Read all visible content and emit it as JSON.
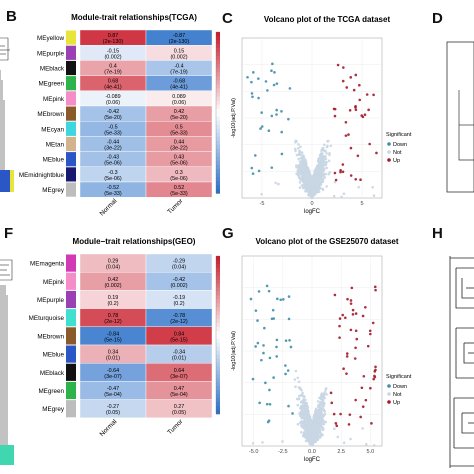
{
  "panel_letters": {
    "B": "B",
    "C": "C",
    "D": "D",
    "F": "F",
    "G": "G",
    "H": "H"
  },
  "chart_data": [
    {
      "type": "heatmap",
      "panel": "B",
      "title": "Module-trait relationships(TCGA)",
      "columns": [
        "Normal",
        "Tumor"
      ],
      "rows": [
        {
          "module": "MEyellow",
          "color": "#e8e43a",
          "values": [
            {
              "r": "0.87",
              "p": "(2e-130)",
              "num": 0.87
            },
            {
              "r": "-0.87",
              "p": "(2e-130)",
              "num": -0.87
            }
          ]
        },
        {
          "module": "MEpurple",
          "color": "#9b3fb5",
          "values": [
            {
              "r": "-0.15",
              "p": "(0.002)",
              "num": -0.15
            },
            {
              "r": "0.15",
              "p": "(0.002)",
              "num": 0.15
            }
          ]
        },
        {
          "module": "MEblack",
          "color": "#111111",
          "values": [
            {
              "r": "0.4",
              "p": "(7e-19)",
              "num": 0.4
            },
            {
              "r": "-0.4",
              "p": "(7e-19)",
              "num": -0.4
            }
          ]
        },
        {
          "module": "MEgreen",
          "color": "#2db34a",
          "values": [
            {
              "r": "0.68",
              "p": "(4e-41)",
              "num": 0.68
            },
            {
              "r": "-0.68",
              "p": "(4e-41)",
              "num": -0.68
            }
          ]
        },
        {
          "module": "MEpink",
          "color": "#f58ec8",
          "values": [
            {
              "r": "-0.089",
              "p": "(0.06)",
              "num": -0.089
            },
            {
              "r": "0.089",
              "p": "(0.06)",
              "num": 0.089
            }
          ]
        },
        {
          "module": "MEbrown",
          "color": "#8b5a2b",
          "values": [
            {
              "r": "-0.42",
              "p": "(5e-20)",
              "num": -0.42
            },
            {
              "r": "0.42",
              "p": "(5e-20)",
              "num": 0.42
            }
          ]
        },
        {
          "module": "MEcyan",
          "color": "#3fd6e0",
          "values": [
            {
              "r": "-0.5",
              "p": "(5e-33)",
              "num": -0.5
            },
            {
              "r": "0.5",
              "p": "(5e-33)",
              "num": 0.5
            }
          ]
        },
        {
          "module": "MEtan",
          "color": "#d2b48c",
          "values": [
            {
              "r": "-0.44",
              "p": "(3e-22)",
              "num": -0.44
            },
            {
              "r": "0.44",
              "p": "(3e-22)",
              "num": 0.44
            }
          ]
        },
        {
          "module": "MEblue",
          "color": "#2a56c6",
          "values": [
            {
              "r": "-0.43",
              "p": "(5e-06)",
              "num": -0.43
            },
            {
              "r": "0.43",
              "p": "(5e-06)",
              "num": 0.43
            }
          ]
        },
        {
          "module": "MEmidnightblue",
          "color": "#191970",
          "values": [
            {
              "r": "-0.3",
              "p": "(5e-06)",
              "num": -0.3
            },
            {
              "r": "0.3",
              "p": "(5e-06)",
              "num": 0.3
            }
          ]
        },
        {
          "module": "MEgrey",
          "color": "#bdbdbd",
          "values": [
            {
              "r": "-0.52",
              "p": "(5e-33)",
              "num": -0.52
            },
            {
              "r": "0.52",
              "p": "(5e-33)",
              "num": 0.52
            }
          ]
        }
      ],
      "colorbar": {
        "ticks": [
          "1",
          "0.5",
          "0",
          "-0.5",
          "-1"
        ],
        "range": [
          -1,
          1
        ]
      }
    },
    {
      "type": "scatter",
      "panel": "C",
      "title": "Volcano plot of the TCGA dataset",
      "xlabel": "logFC",
      "ylabel": "-log10(adj.P.Val)",
      "x_ticks": [
        "-5",
        "0",
        "5"
      ],
      "xlim": [
        -7,
        7
      ],
      "ylim": [
        0,
        100
      ],
      "legend": {
        "title": "Significant",
        "placement": "right",
        "items": [
          {
            "label": "Down",
            "color": "#3f8fa8"
          },
          {
            "label": "Not",
            "color": "#c9d6e3"
          },
          {
            "label": "Up",
            "color": "#a3192a"
          }
        ]
      }
    },
    {
      "type": "heatmap",
      "panel": "F",
      "title": "Module−trait relationships(GEO)",
      "columns": [
        "Normal",
        "Tumor"
      ],
      "rows": [
        {
          "module": "MEmagenta",
          "color": "#d23ab5",
          "values": [
            {
              "r": "0.29",
              "p": "(0.04)",
              "num": 0.29
            },
            {
              "r": "-0.29",
              "p": "(0.04)",
              "num": -0.29
            }
          ]
        },
        {
          "module": "MEpink",
          "color": "#f58ec8",
          "values": [
            {
              "r": "0.42",
              "p": "(0.002)",
              "num": 0.42
            },
            {
              "r": "-0.42",
              "p": "(0.002)",
              "num": -0.42
            }
          ]
        },
        {
          "module": "MEpurple",
          "color": "#9b3fb5",
          "values": [
            {
              "r": "0.19",
              "p": "(0.2)",
              "num": 0.19
            },
            {
              "r": "-0.19",
              "p": "(0.2)",
              "num": -0.19
            }
          ]
        },
        {
          "module": "MEturquoise",
          "color": "#3fe0d0",
          "values": [
            {
              "r": "0.78",
              "p": "(2e-12)",
              "num": 0.78
            },
            {
              "r": "-0.78",
              "p": "(2e-12)",
              "num": -0.78
            }
          ]
        },
        {
          "module": "MEbrown",
          "color": "#8b5a2b",
          "values": [
            {
              "r": "-0.84",
              "p": "(5e-15)",
              "num": -0.84
            },
            {
              "r": "0.84",
              "p": "(5e-15)",
              "num": 0.84
            }
          ]
        },
        {
          "module": "MEblue",
          "color": "#2a56c6",
          "values": [
            {
              "r": "0.34",
              "p": "(0.01)",
              "num": 0.34
            },
            {
              "r": "-0.34",
              "p": "(0.01)",
              "num": -0.34
            }
          ]
        },
        {
          "module": "MEblack",
          "color": "#111111",
          "values": [
            {
              "r": "-0.64",
              "p": "(3e-07)",
              "num": -0.64
            },
            {
              "r": "0.64",
              "p": "(3e-07)",
              "num": 0.64
            }
          ]
        },
        {
          "module": "MEgreen",
          "color": "#2db34a",
          "values": [
            {
              "r": "-0.47",
              "p": "(5e-04)",
              "num": -0.47
            },
            {
              "r": "0.47",
              "p": "(5e-04)",
              "num": 0.47
            }
          ]
        },
        {
          "module": "MEgrey",
          "color": "#bdbdbd",
          "values": [
            {
              "r": "-0.27",
              "p": "(0.05)",
              "num": -0.27
            },
            {
              "r": "0.27",
              "p": "(0.05)",
              "num": 0.27
            }
          ]
        }
      ],
      "colorbar": {
        "ticks": [
          "1",
          "0.5",
          "0",
          "-0.5",
          "-1"
        ],
        "range": [
          -1,
          1
        ]
      }
    },
    {
      "type": "scatter",
      "panel": "G",
      "title": "Volcano plot of the GSE25070 dataset",
      "xlabel": "logFC",
      "ylabel": "-log10(adj.P.Val)",
      "x_ticks": [
        "-5.0",
        "-2.5",
        "0.0",
        "2.5",
        "5.0"
      ],
      "xlim": [
        -6,
        6
      ],
      "ylim": [
        0,
        20
      ],
      "legend": {
        "title": "Significant",
        "placement": "right",
        "items": [
          {
            "label": "Down",
            "color": "#3f8fa8"
          },
          {
            "label": "Not",
            "color": "#c9d6e3"
          },
          {
            "label": "Up",
            "color": "#a3192a"
          }
        ]
      }
    }
  ]
}
